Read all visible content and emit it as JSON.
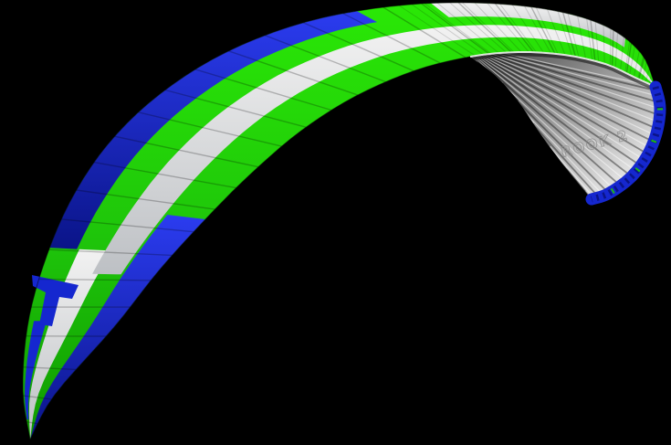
{
  "image": {
    "description": "3D rendering of a paraglider wing canopy arcing across a black background, seen from behind and above with the right wingtip curling toward the viewer, exposing the ribbed under-surface and open leading-edge cells",
    "background_color": "#000000"
  },
  "wing": {
    "logo_text": "ROOK 2",
    "colors": {
      "green": "#1ec40a",
      "green_bright": "#2ae806",
      "green_dark": "#0f9b00",
      "blue": "#1527cf",
      "blue_bright": "#2b3cf0",
      "blue_dark": "#0a1488",
      "white": "#f2f2f2",
      "white_shadow": "#bdc0c4",
      "under_surface_dark": "#3f3f3f",
      "under_surface_mid": "#9a9a9a",
      "under_surface_light": "#ededed",
      "rib_line": "rgba(0,0,0,0.24)",
      "rib_line_fine": "rgba(0,0,0,0.15)",
      "stripe_dark": "rgba(0,0,0,0.40)",
      "stripe_light": "rgba(255,255,255,0.50)",
      "curl_shadow": "rgba(0,0,0,0.50)",
      "rim_highlight": "#ffffff",
      "logo_outline": "#8a8a8a"
    }
  }
}
